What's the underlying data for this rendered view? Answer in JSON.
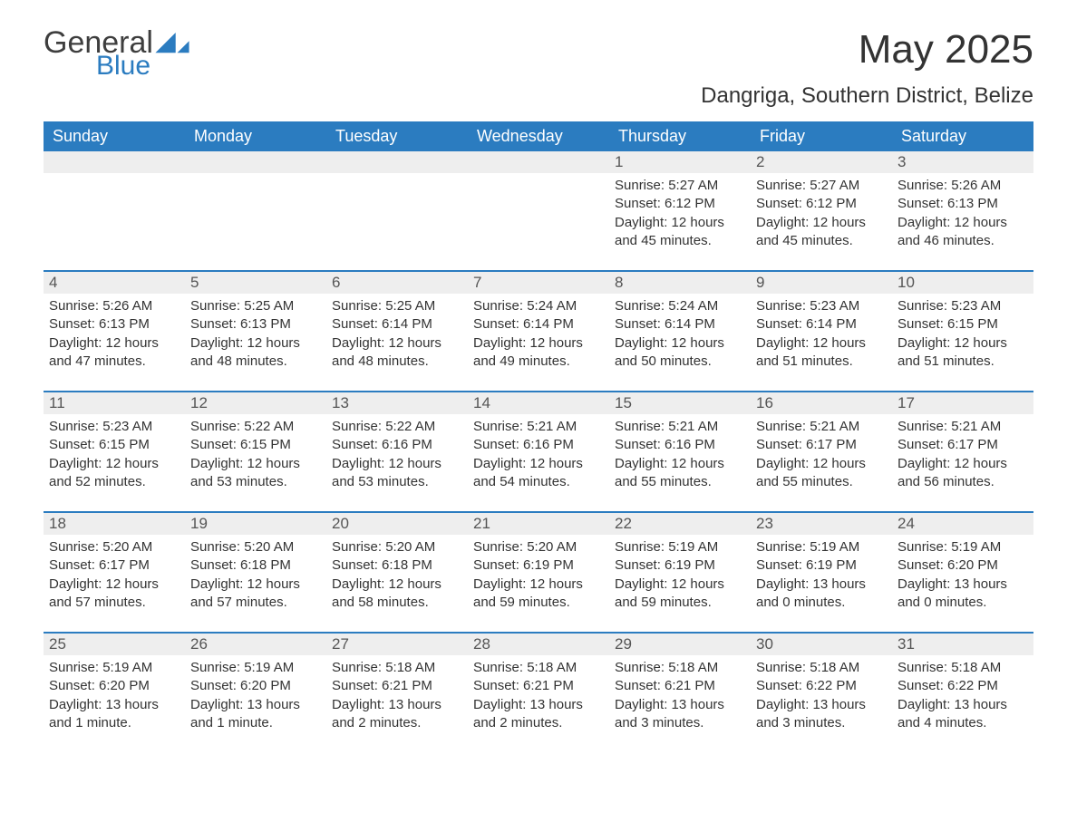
{
  "logo": {
    "text_general": "General",
    "text_blue": "Blue",
    "icon_color": "#2b7cc0"
  },
  "title": "May 2025",
  "subtitle": "Dangriga, Southern District, Belize",
  "colors": {
    "header_bg": "#2b7cc0",
    "header_text": "#ffffff",
    "daynum_bg": "#eeeeee",
    "daynum_text": "#555555",
    "body_text": "#333333",
    "row_border": "#2b7cc0",
    "page_bg": "#ffffff"
  },
  "typography": {
    "title_fontsize": 44,
    "subtitle_fontsize": 24,
    "header_fontsize": 18,
    "daynum_fontsize": 17,
    "body_fontsize": 15
  },
  "layout": {
    "columns": 7,
    "rows": 5,
    "start_day_index": 4
  },
  "day_headers": [
    "Sunday",
    "Monday",
    "Tuesday",
    "Wednesday",
    "Thursday",
    "Friday",
    "Saturday"
  ],
  "days": [
    {
      "n": "1",
      "sunrise": "Sunrise: 5:27 AM",
      "sunset": "Sunset: 6:12 PM",
      "day1": "Daylight: 12 hours",
      "day2": "and 45 minutes."
    },
    {
      "n": "2",
      "sunrise": "Sunrise: 5:27 AM",
      "sunset": "Sunset: 6:12 PM",
      "day1": "Daylight: 12 hours",
      "day2": "and 45 minutes."
    },
    {
      "n": "3",
      "sunrise": "Sunrise: 5:26 AM",
      "sunset": "Sunset: 6:13 PM",
      "day1": "Daylight: 12 hours",
      "day2": "and 46 minutes."
    },
    {
      "n": "4",
      "sunrise": "Sunrise: 5:26 AM",
      "sunset": "Sunset: 6:13 PM",
      "day1": "Daylight: 12 hours",
      "day2": "and 47 minutes."
    },
    {
      "n": "5",
      "sunrise": "Sunrise: 5:25 AM",
      "sunset": "Sunset: 6:13 PM",
      "day1": "Daylight: 12 hours",
      "day2": "and 48 minutes."
    },
    {
      "n": "6",
      "sunrise": "Sunrise: 5:25 AM",
      "sunset": "Sunset: 6:14 PM",
      "day1": "Daylight: 12 hours",
      "day2": "and 48 minutes."
    },
    {
      "n": "7",
      "sunrise": "Sunrise: 5:24 AM",
      "sunset": "Sunset: 6:14 PM",
      "day1": "Daylight: 12 hours",
      "day2": "and 49 minutes."
    },
    {
      "n": "8",
      "sunrise": "Sunrise: 5:24 AM",
      "sunset": "Sunset: 6:14 PM",
      "day1": "Daylight: 12 hours",
      "day2": "and 50 minutes."
    },
    {
      "n": "9",
      "sunrise": "Sunrise: 5:23 AM",
      "sunset": "Sunset: 6:14 PM",
      "day1": "Daylight: 12 hours",
      "day2": "and 51 minutes."
    },
    {
      "n": "10",
      "sunrise": "Sunrise: 5:23 AM",
      "sunset": "Sunset: 6:15 PM",
      "day1": "Daylight: 12 hours",
      "day2": "and 51 minutes."
    },
    {
      "n": "11",
      "sunrise": "Sunrise: 5:23 AM",
      "sunset": "Sunset: 6:15 PM",
      "day1": "Daylight: 12 hours",
      "day2": "and 52 minutes."
    },
    {
      "n": "12",
      "sunrise": "Sunrise: 5:22 AM",
      "sunset": "Sunset: 6:15 PM",
      "day1": "Daylight: 12 hours",
      "day2": "and 53 minutes."
    },
    {
      "n": "13",
      "sunrise": "Sunrise: 5:22 AM",
      "sunset": "Sunset: 6:16 PM",
      "day1": "Daylight: 12 hours",
      "day2": "and 53 minutes."
    },
    {
      "n": "14",
      "sunrise": "Sunrise: 5:21 AM",
      "sunset": "Sunset: 6:16 PM",
      "day1": "Daylight: 12 hours",
      "day2": "and 54 minutes."
    },
    {
      "n": "15",
      "sunrise": "Sunrise: 5:21 AM",
      "sunset": "Sunset: 6:16 PM",
      "day1": "Daylight: 12 hours",
      "day2": "and 55 minutes."
    },
    {
      "n": "16",
      "sunrise": "Sunrise: 5:21 AM",
      "sunset": "Sunset: 6:17 PM",
      "day1": "Daylight: 12 hours",
      "day2": "and 55 minutes."
    },
    {
      "n": "17",
      "sunrise": "Sunrise: 5:21 AM",
      "sunset": "Sunset: 6:17 PM",
      "day1": "Daylight: 12 hours",
      "day2": "and 56 minutes."
    },
    {
      "n": "18",
      "sunrise": "Sunrise: 5:20 AM",
      "sunset": "Sunset: 6:17 PM",
      "day1": "Daylight: 12 hours",
      "day2": "and 57 minutes."
    },
    {
      "n": "19",
      "sunrise": "Sunrise: 5:20 AM",
      "sunset": "Sunset: 6:18 PM",
      "day1": "Daylight: 12 hours",
      "day2": "and 57 minutes."
    },
    {
      "n": "20",
      "sunrise": "Sunrise: 5:20 AM",
      "sunset": "Sunset: 6:18 PM",
      "day1": "Daylight: 12 hours",
      "day2": "and 58 minutes."
    },
    {
      "n": "21",
      "sunrise": "Sunrise: 5:20 AM",
      "sunset": "Sunset: 6:19 PM",
      "day1": "Daylight: 12 hours",
      "day2": "and 59 minutes."
    },
    {
      "n": "22",
      "sunrise": "Sunrise: 5:19 AM",
      "sunset": "Sunset: 6:19 PM",
      "day1": "Daylight: 12 hours",
      "day2": "and 59 minutes."
    },
    {
      "n": "23",
      "sunrise": "Sunrise: 5:19 AM",
      "sunset": "Sunset: 6:19 PM",
      "day1": "Daylight: 13 hours",
      "day2": "and 0 minutes."
    },
    {
      "n": "24",
      "sunrise": "Sunrise: 5:19 AM",
      "sunset": "Sunset: 6:20 PM",
      "day1": "Daylight: 13 hours",
      "day2": "and 0 minutes."
    },
    {
      "n": "25",
      "sunrise": "Sunrise: 5:19 AM",
      "sunset": "Sunset: 6:20 PM",
      "day1": "Daylight: 13 hours",
      "day2": "and 1 minute."
    },
    {
      "n": "26",
      "sunrise": "Sunrise: 5:19 AM",
      "sunset": "Sunset: 6:20 PM",
      "day1": "Daylight: 13 hours",
      "day2": "and 1 minute."
    },
    {
      "n": "27",
      "sunrise": "Sunrise: 5:18 AM",
      "sunset": "Sunset: 6:21 PM",
      "day1": "Daylight: 13 hours",
      "day2": "and 2 minutes."
    },
    {
      "n": "28",
      "sunrise": "Sunrise: 5:18 AM",
      "sunset": "Sunset: 6:21 PM",
      "day1": "Daylight: 13 hours",
      "day2": "and 2 minutes."
    },
    {
      "n": "29",
      "sunrise": "Sunrise: 5:18 AM",
      "sunset": "Sunset: 6:21 PM",
      "day1": "Daylight: 13 hours",
      "day2": "and 3 minutes."
    },
    {
      "n": "30",
      "sunrise": "Sunrise: 5:18 AM",
      "sunset": "Sunset: 6:22 PM",
      "day1": "Daylight: 13 hours",
      "day2": "and 3 minutes."
    },
    {
      "n": "31",
      "sunrise": "Sunrise: 5:18 AM",
      "sunset": "Sunset: 6:22 PM",
      "day1": "Daylight: 13 hours",
      "day2": "and 4 minutes."
    }
  ]
}
